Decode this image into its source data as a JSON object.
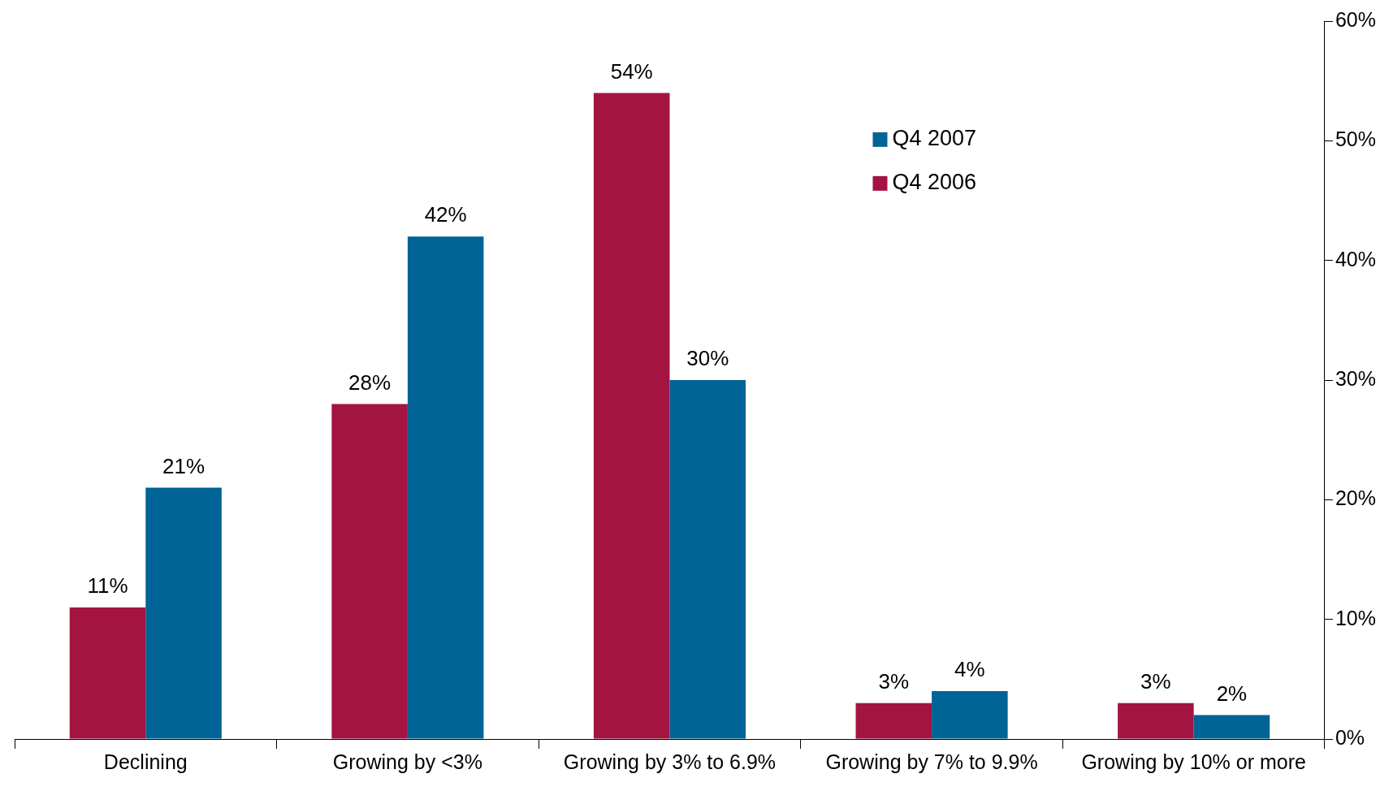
{
  "chart_data": {
    "type": "bar",
    "categories": [
      "Declining",
      "Growing by <3%",
      "Growing by 3% to 6.9%",
      "Growing by 7% to 9.9%",
      "Growing by 10% or more"
    ],
    "series": [
      {
        "name": "Q4 2006",
        "color": "#a31441",
        "values": [
          11,
          28,
          54,
          3,
          3
        ],
        "value_labels": [
          "11%",
          "28%",
          "54%",
          "3%",
          "3%"
        ]
      },
      {
        "name": "Q4 2007",
        "color": "#006496",
        "values": [
          21,
          42,
          30,
          4,
          2
        ],
        "value_labels": [
          "21%",
          "42%",
          "30%",
          "4%",
          "2%"
        ]
      }
    ],
    "ylim": [
      0,
      60
    ],
    "yticks": [
      {
        "value": 0,
        "label": "0%"
      },
      {
        "value": 10,
        "label": "10%"
      },
      {
        "value": 20,
        "label": "20%"
      },
      {
        "value": 30,
        "label": "30%"
      },
      {
        "value": 40,
        "label": "40%"
      },
      {
        "value": 50,
        "label": "50%"
      },
      {
        "value": 60,
        "label": "60%"
      }
    ],
    "grid": false,
    "legend": "top right"
  }
}
